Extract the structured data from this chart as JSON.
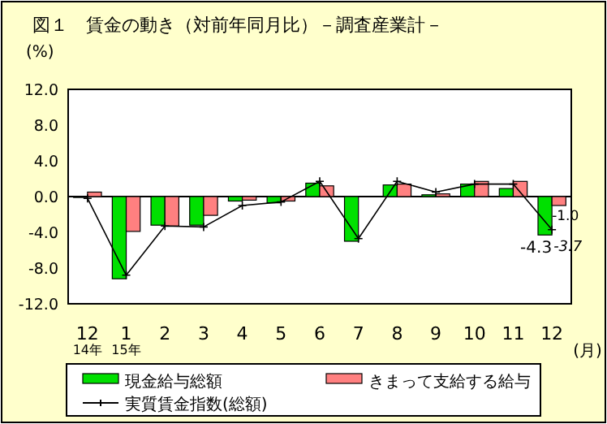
{
  "chart_data": {
    "type": "bar",
    "title": "図１　賃金の動き（対前年同月比）－調査産業計－",
    "ylabel": "(%)",
    "xlabel": "(月)",
    "categories": [
      "12\n14年",
      "1\n15年",
      "2",
      "3",
      "4",
      "5",
      "6",
      "7",
      "8",
      "9",
      "10",
      "11",
      "12"
    ],
    "series": [
      {
        "name": "現金給与総額",
        "color": "#00e000",
        "values": [
          -0.1,
          -9.2,
          -3.2,
          -3.2,
          -0.5,
          -0.7,
          1.5,
          -5.0,
          1.3,
          0.2,
          1.4,
          0.9,
          -4.3
        ],
        "value_labels": [
          null,
          null,
          null,
          null,
          null,
          null,
          null,
          null,
          null,
          null,
          null,
          null,
          "-4.3"
        ]
      },
      {
        "name": "きまって支給する給与",
        "color": "#ff8080",
        "values": [
          0.5,
          -3.9,
          -3.3,
          -2.1,
          -0.4,
          -0.5,
          1.2,
          0.0,
          1.4,
          0.3,
          1.7,
          1.7,
          -1.0
        ],
        "value_labels": [
          null,
          null,
          null,
          null,
          null,
          null,
          null,
          null,
          null,
          null,
          null,
          null,
          "-1.0"
        ]
      },
      {
        "name": "実質賃金指数(総額)",
        "type": "line",
        "color": "#000000",
        "marker": "cross",
        "values": [
          -0.2,
          -8.8,
          -3.3,
          -3.4,
          -1.0,
          -0.6,
          1.7,
          -4.7,
          1.7,
          0.5,
          1.4,
          1.4,
          -3.7
        ],
        "value_labels": [
          null,
          null,
          null,
          null,
          null,
          null,
          null,
          null,
          null,
          null,
          null,
          null,
          "-3.7"
        ]
      }
    ],
    "ylim": [
      -12,
      12
    ],
    "yticks": [
      {
        "value": 12,
        "label": "12.0"
      },
      {
        "value": 8,
        "label": "8.0"
      },
      {
        "value": 4,
        "label": "4.0"
      },
      {
        "value": 0,
        "label": "0.0"
      },
      {
        "value": -4,
        "label": "-4.0"
      },
      {
        "value": -8,
        "label": "-8.0"
      },
      {
        "value": -12,
        "label": "-12.0"
      }
    ],
    "legend": "bottom"
  }
}
